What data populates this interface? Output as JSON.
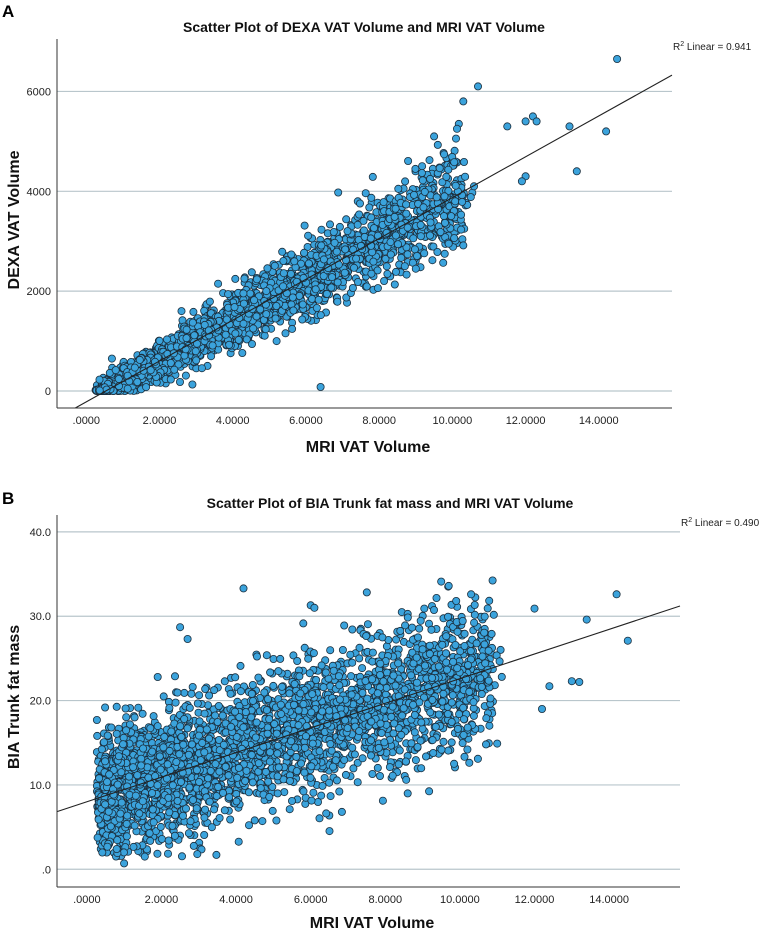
{
  "chart_data": [
    {
      "type": "scatter",
      "panel_label": "A",
      "title": "Scatter Plot of DEXA VAT Volume and MRI VAT Volume",
      "xlabel": "MRI VAT Volume",
      "ylabel": "DEXA VAT Volume",
      "xlim": [
        -0.8,
        16.0
      ],
      "ylim": [
        -340,
        7050
      ],
      "xticks": [
        0,
        2,
        4,
        6,
        8,
        10,
        12,
        14
      ],
      "xtick_labels": [
        ".0000",
        "2.0000",
        "4.0000",
        "6.0000",
        "8.0000",
        "10.0000",
        "12.0000",
        "14.0000"
      ],
      "yticks": [
        0,
        2000,
        4000,
        6000
      ],
      "ytick_labels": [
        "0",
        "2000",
        "4000",
        "6000"
      ],
      "grid": "horizontal",
      "fit_line": {
        "intercept": -217,
        "slope": 409
      },
      "r2_label": "R",
      "r2_sup": "2",
      "r2_text": " Linear = 0.941",
      "point_color": "#3ba3dc",
      "point_edge": "#1b2f3e",
      "point_cloud": {
        "n": 2600,
        "seed": 11,
        "x_min": 0.25,
        "x_spread": 10.0,
        "x_skew": 1.5,
        "noise_base": 110,
        "noise_per_x": 42,
        "y_floor": 0
      },
      "outliers": [
        [
          14.5,
          6650
        ],
        [
          10.7,
          6100
        ],
        [
          10.3,
          5800
        ],
        [
          14.2,
          5200
        ],
        [
          13.4,
          4400
        ],
        [
          12.2,
          5500
        ],
        [
          12.3,
          5400
        ],
        [
          13.2,
          5300
        ],
        [
          11.5,
          5300
        ],
        [
          12.0,
          5400
        ],
        [
          9.5,
          5100
        ],
        [
          6.4,
          80
        ],
        [
          2.9,
          130
        ],
        [
          12.0,
          4300
        ],
        [
          11.9,
          4200
        ],
        [
          9.9,
          2950
        ],
        [
          8.7,
          2500
        ],
        [
          9.0,
          2450
        ],
        [
          5.2,
          1000
        ],
        [
          0.7,
          650
        ],
        [
          3.6,
          2150
        ],
        [
          2.6,
          1600
        ]
      ]
    },
    {
      "type": "scatter",
      "panel_label": "B",
      "title": "Scatter Plot of BIA Trunk fat mass and MRI VAT Volume",
      "xlabel": "MRI VAT Volume",
      "ylabel": "BIA Trunk fat mass",
      "xlim": [
        -0.8,
        15.9
      ],
      "ylim": [
        -2.1,
        42.0
      ],
      "xticks": [
        0,
        2,
        4,
        6,
        8,
        10,
        12,
        14
      ],
      "xtick_labels": [
        ".0000",
        "2.0000",
        "4.0000",
        "6.0000",
        "8.0000",
        "10.0000",
        "12.0000",
        "14.0000"
      ],
      "yticks": [
        0,
        10,
        20,
        30,
        40
      ],
      "ytick_labels": [
        ".0",
        "10.0",
        "20.0",
        "30.0",
        "40.0"
      ],
      "grid": "horizontal",
      "fit_line": {
        "intercept": 8.0,
        "slope": 1.46
      },
      "r2_label": "R",
      "r2_sup": "2",
      "r2_text": " Linear = 0.490",
      "point_color": "#3ba3dc",
      "point_edge": "#1b2f3e",
      "point_cloud": {
        "n": 3200,
        "seed": 23,
        "x_min": 0.25,
        "x_spread": 10.5,
        "x_skew": 1.35,
        "noise_base": 3.6,
        "noise_per_x": 0.05,
        "y_floor": 1.5
      },
      "outliers": [
        [
          4.2,
          33.3
        ],
        [
          9.5,
          34.1
        ],
        [
          9.7,
          33.6
        ],
        [
          10.3,
          32.6
        ],
        [
          14.2,
          32.6
        ],
        [
          9.9,
          31.8
        ],
        [
          14.5,
          27.1
        ],
        [
          1.0,
          0.7
        ],
        [
          8.6,
          9.0
        ],
        [
          4.5,
          5.8
        ],
        [
          13.4,
          29.6
        ],
        [
          12.0,
          30.9
        ],
        [
          6.0,
          31.3
        ],
        [
          6.1,
          31.0
        ],
        [
          2.5,
          28.7
        ],
        [
          2.7,
          27.3
        ],
        [
          1.9,
          22.8
        ],
        [
          12.2,
          19.0
        ],
        [
          11.0,
          14.9
        ],
        [
          10.2,
          14.2
        ],
        [
          13.0,
          22.3
        ],
        [
          13.2,
          22.2
        ],
        [
          12.4,
          21.7
        ],
        [
          8.2,
          11.1
        ],
        [
          5.5,
          8.1
        ],
        [
          0.8,
          2.4
        ]
      ]
    }
  ]
}
